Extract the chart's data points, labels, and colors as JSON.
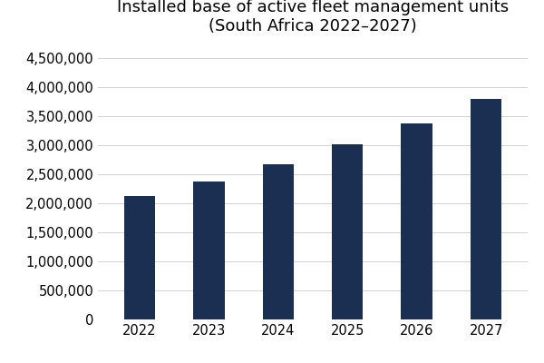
{
  "title": "Installed base of active fleet management units\n(South Africa 2022–2027)",
  "years": [
    "2022",
    "2023",
    "2024",
    "2025",
    "2026",
    "2027"
  ],
  "values": [
    2130000,
    2380000,
    2670000,
    3010000,
    3370000,
    3800000
  ],
  "bar_color": "#1b2f52",
  "background_color": "#ffffff",
  "ylim": [
    0,
    4750000
  ],
  "yticks": [
    0,
    500000,
    1000000,
    1500000,
    2000000,
    2500000,
    3000000,
    3500000,
    4000000,
    4500000
  ],
  "title_fontsize": 13,
  "tick_fontsize": 10.5,
  "grid_color": "#d0d0d0",
  "bar_width": 0.45
}
